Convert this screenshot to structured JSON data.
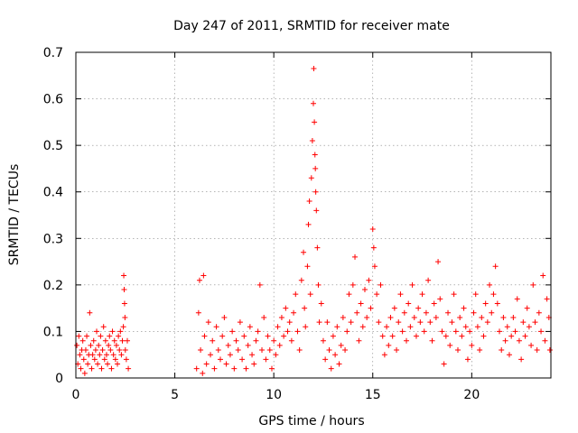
{
  "chart_data": {
    "type": "scatter",
    "title": "Day 247 of 2011, SRMTID for receiver mate",
    "xlabel": "GPS time / hours",
    "ylabel": "SRMTID / TECUs",
    "xlim": [
      0,
      24
    ],
    "ylim": [
      0,
      0.7
    ],
    "xticks": [
      0,
      5,
      10,
      15,
      20
    ],
    "yticks": [
      0,
      0.1,
      0.2,
      0.3,
      0.4,
      0.5,
      0.6,
      0.7
    ],
    "grid": true,
    "marker": "+",
    "color": "#ff0000",
    "series": [
      {
        "name": "SRMTID",
        "points": [
          [
            0.05,
            0.07
          ],
          [
            0.1,
            0.03
          ],
          [
            0.15,
            0.09
          ],
          [
            0.2,
            0.05
          ],
          [
            0.25,
            0.02
          ],
          [
            0.3,
            0.06
          ],
          [
            0.35,
            0.08
          ],
          [
            0.4,
            0.04
          ],
          [
            0.45,
            0.01
          ],
          [
            0.5,
            0.06
          ],
          [
            0.55,
            0.09
          ],
          [
            0.6,
            0.03
          ],
          [
            0.65,
            0.05
          ],
          [
            0.7,
            0.14
          ],
          [
            0.75,
            0.07
          ],
          [
            0.8,
            0.02
          ],
          [
            0.85,
            0.05
          ],
          [
            0.9,
            0.08
          ],
          [
            0.95,
            0.04
          ],
          [
            1.0,
            0.06
          ],
          [
            1.05,
            0.1
          ],
          [
            1.1,
            0.03
          ],
          [
            1.15,
            0.07
          ],
          [
            1.2,
            0.05
          ],
          [
            1.25,
            0.09
          ],
          [
            1.3,
            0.02
          ],
          [
            1.35,
            0.06
          ],
          [
            1.4,
            0.11
          ],
          [
            1.45,
            0.04
          ],
          [
            1.5,
            0.08
          ],
          [
            1.55,
            0.05
          ],
          [
            1.6,
            0.03
          ],
          [
            1.65,
            0.07
          ],
          [
            1.7,
            0.09
          ],
          [
            1.75,
            0.06
          ],
          [
            1.8,
            0.02
          ],
          [
            1.85,
            0.1
          ],
          [
            1.9,
            0.05
          ],
          [
            1.95,
            0.08
          ],
          [
            2.0,
            0.04
          ],
          [
            2.05,
            0.07
          ],
          [
            2.1,
            0.03
          ],
          [
            2.15,
            0.09
          ],
          [
            2.2,
            0.06
          ],
          [
            2.25,
            0.1
          ],
          [
            2.3,
            0.05
          ],
          [
            2.35,
            0.08
          ],
          [
            2.4,
            0.11
          ],
          [
            2.42,
            0.22
          ],
          [
            2.44,
            0.19
          ],
          [
            2.46,
            0.16
          ],
          [
            2.48,
            0.13
          ],
          [
            2.5,
            0.06
          ],
          [
            2.55,
            0.04
          ],
          [
            2.6,
            0.08
          ],
          [
            2.65,
            0.02
          ],
          [
            6.1,
            0.02
          ],
          [
            6.2,
            0.14
          ],
          [
            6.25,
            0.21
          ],
          [
            6.3,
            0.06
          ],
          [
            6.4,
            0.01
          ],
          [
            6.45,
            0.22
          ],
          [
            6.5,
            0.09
          ],
          [
            6.6,
            0.03
          ],
          [
            6.7,
            0.12
          ],
          [
            6.8,
            0.05
          ],
          [
            6.9,
            0.08
          ],
          [
            7.0,
            0.02
          ],
          [
            7.1,
            0.11
          ],
          [
            7.2,
            0.06
          ],
          [
            7.3,
            0.04
          ],
          [
            7.4,
            0.09
          ],
          [
            7.5,
            0.13
          ],
          [
            7.6,
            0.03
          ],
          [
            7.7,
            0.07
          ],
          [
            7.8,
            0.05
          ],
          [
            7.9,
            0.1
          ],
          [
            8.0,
            0.02
          ],
          [
            8.1,
            0.08
          ],
          [
            8.2,
            0.06
          ],
          [
            8.3,
            0.12
          ],
          [
            8.4,
            0.04
          ],
          [
            8.5,
            0.09
          ],
          [
            8.6,
            0.02
          ],
          [
            8.7,
            0.07
          ],
          [
            8.8,
            0.11
          ],
          [
            8.9,
            0.05
          ],
          [
            9.0,
            0.03
          ],
          [
            9.1,
            0.08
          ],
          [
            9.2,
            0.1
          ],
          [
            9.3,
            0.2
          ],
          [
            9.4,
            0.06
          ],
          [
            9.5,
            0.13
          ],
          [
            9.6,
            0.04
          ],
          [
            9.7,
            0.09
          ],
          [
            9.8,
            0.06
          ],
          [
            9.9,
            0.02
          ],
          [
            10.0,
            0.08
          ],
          [
            10.1,
            0.05
          ],
          [
            10.2,
            0.11
          ],
          [
            10.3,
            0.07
          ],
          [
            10.4,
            0.13
          ],
          [
            10.5,
            0.09
          ],
          [
            10.6,
            0.15
          ],
          [
            10.7,
            0.1
          ],
          [
            10.8,
            0.12
          ],
          [
            10.9,
            0.08
          ],
          [
            11.0,
            0.14
          ],
          [
            11.1,
            0.18
          ],
          [
            11.2,
            0.1
          ],
          [
            11.3,
            0.06
          ],
          [
            11.4,
            0.21
          ],
          [
            11.5,
            0.27
          ],
          [
            11.55,
            0.15
          ],
          [
            11.6,
            0.11
          ],
          [
            11.7,
            0.24
          ],
          [
            11.75,
            0.33
          ],
          [
            11.8,
            0.38
          ],
          [
            11.85,
            0.18
          ],
          [
            11.9,
            0.43
          ],
          [
            11.95,
            0.51
          ],
          [
            12.0,
            0.59
          ],
          [
            12.02,
            0.665
          ],
          [
            12.05,
            0.55
          ],
          [
            12.08,
            0.48
          ],
          [
            12.1,
            0.45
          ],
          [
            12.12,
            0.4
          ],
          [
            12.15,
            0.36
          ],
          [
            12.2,
            0.28
          ],
          [
            12.25,
            0.2
          ],
          [
            12.3,
            0.12
          ],
          [
            12.4,
            0.16
          ],
          [
            12.5,
            0.08
          ],
          [
            12.6,
            0.04
          ],
          [
            12.7,
            0.12
          ],
          [
            12.8,
            0.06
          ],
          [
            12.9,
            0.02
          ],
          [
            13.0,
            0.09
          ],
          [
            13.1,
            0.05
          ],
          [
            13.2,
            0.11
          ],
          [
            13.3,
            0.03
          ],
          [
            13.4,
            0.07
          ],
          [
            13.5,
            0.13
          ],
          [
            13.6,
            0.06
          ],
          [
            13.7,
            0.1
          ],
          [
            13.8,
            0.18
          ],
          [
            13.9,
            0.12
          ],
          [
            14.0,
            0.2
          ],
          [
            14.1,
            0.26
          ],
          [
            14.2,
            0.14
          ],
          [
            14.3,
            0.08
          ],
          [
            14.4,
            0.16
          ],
          [
            14.5,
            0.11
          ],
          [
            14.6,
            0.19
          ],
          [
            14.7,
            0.13
          ],
          [
            14.8,
            0.21
          ],
          [
            14.9,
            0.15
          ],
          [
            15.0,
            0.32
          ],
          [
            15.05,
            0.28
          ],
          [
            15.1,
            0.24
          ],
          [
            15.2,
            0.18
          ],
          [
            15.3,
            0.12
          ],
          [
            15.4,
            0.2
          ],
          [
            15.5,
            0.09
          ],
          [
            15.6,
            0.05
          ],
          [
            15.7,
            0.11
          ],
          [
            15.8,
            0.07
          ],
          [
            15.9,
            0.13
          ],
          [
            16.0,
            0.09
          ],
          [
            16.1,
            0.15
          ],
          [
            16.2,
            0.06
          ],
          [
            16.3,
            0.12
          ],
          [
            16.4,
            0.18
          ],
          [
            16.5,
            0.1
          ],
          [
            16.6,
            0.14
          ],
          [
            16.7,
            0.08
          ],
          [
            16.8,
            0.16
          ],
          [
            16.9,
            0.11
          ],
          [
            17.0,
            0.2
          ],
          [
            17.1,
            0.13
          ],
          [
            17.2,
            0.09
          ],
          [
            17.3,
            0.15
          ],
          [
            17.4,
            0.12
          ],
          [
            17.5,
            0.18
          ],
          [
            17.6,
            0.1
          ],
          [
            17.7,
            0.14
          ],
          [
            17.8,
            0.21
          ],
          [
            17.9,
            0.12
          ],
          [
            18.0,
            0.08
          ],
          [
            18.1,
            0.16
          ],
          [
            18.2,
            0.13
          ],
          [
            18.3,
            0.25
          ],
          [
            18.4,
            0.17
          ],
          [
            18.5,
            0.1
          ],
          [
            18.6,
            0.03
          ],
          [
            18.7,
            0.09
          ],
          [
            18.8,
            0.14
          ],
          [
            18.9,
            0.07
          ],
          [
            19.0,
            0.12
          ],
          [
            19.1,
            0.18
          ],
          [
            19.2,
            0.1
          ],
          [
            19.3,
            0.06
          ],
          [
            19.4,
            0.13
          ],
          [
            19.5,
            0.09
          ],
          [
            19.6,
            0.15
          ],
          [
            19.7,
            0.11
          ],
          [
            19.8,
            0.04
          ],
          [
            19.9,
            0.1
          ],
          [
            20.0,
            0.07
          ],
          [
            20.1,
            0.14
          ],
          [
            20.2,
            0.18
          ],
          [
            20.3,
            0.11
          ],
          [
            20.4,
            0.06
          ],
          [
            20.5,
            0.13
          ],
          [
            20.6,
            0.09
          ],
          [
            20.7,
            0.16
          ],
          [
            20.8,
            0.12
          ],
          [
            20.9,
            0.2
          ],
          [
            21.0,
            0.14
          ],
          [
            21.1,
            0.18
          ],
          [
            21.2,
            0.24
          ],
          [
            21.3,
            0.16
          ],
          [
            21.4,
            0.1
          ],
          [
            21.5,
            0.06
          ],
          [
            21.6,
            0.13
          ],
          [
            21.7,
            0.08
          ],
          [
            21.8,
            0.11
          ],
          [
            21.9,
            0.05
          ],
          [
            22.0,
            0.09
          ],
          [
            22.1,
            0.13
          ],
          [
            22.2,
            0.1
          ],
          [
            22.3,
            0.17
          ],
          [
            22.4,
            0.08
          ],
          [
            22.5,
            0.04
          ],
          [
            22.6,
            0.12
          ],
          [
            22.7,
            0.09
          ],
          [
            22.8,
            0.15
          ],
          [
            22.9,
            0.11
          ],
          [
            23.0,
            0.07
          ],
          [
            23.1,
            0.2
          ],
          [
            23.2,
            0.12
          ],
          [
            23.3,
            0.06
          ],
          [
            23.4,
            0.14
          ],
          [
            23.5,
            0.1
          ],
          [
            23.6,
            0.22
          ],
          [
            23.7,
            0.08
          ],
          [
            23.8,
            0.17
          ],
          [
            23.9,
            0.13
          ],
          [
            23.95,
            0.06
          ]
        ]
      }
    ]
  }
}
